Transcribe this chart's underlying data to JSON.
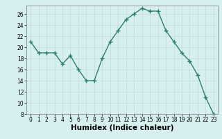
{
  "x": [
    0,
    1,
    2,
    3,
    4,
    5,
    6,
    7,
    8,
    9,
    10,
    11,
    12,
    13,
    14,
    15,
    16,
    17,
    18,
    19,
    20,
    21,
    22,
    23
  ],
  "y": [
    21,
    19,
    19,
    19,
    17,
    18.5,
    16,
    14,
    14,
    18,
    21,
    23,
    25,
    26,
    27,
    26.5,
    26.5,
    23,
    21,
    19,
    17.5,
    15,
    11,
    8
  ],
  "line_color": "#2d7d6e",
  "marker": "+",
  "marker_size": 4,
  "xlabel": "Humidex (Indice chaleur)",
  "ylim": [
    8,
    27
  ],
  "xlim": [
    -0.5,
    23.5
  ],
  "yticks": [
    8,
    10,
    12,
    14,
    16,
    18,
    20,
    22,
    24,
    26
  ],
  "xticks": [
    0,
    1,
    2,
    3,
    4,
    5,
    6,
    7,
    8,
    9,
    10,
    11,
    12,
    13,
    14,
    15,
    16,
    17,
    18,
    19,
    20,
    21,
    22,
    23
  ],
  "bg_color": "#d6f0f0",
  "grid_color": "#c8dede",
  "tick_fontsize": 5.5,
  "xlabel_fontsize": 7.5,
  "xlabel_fontweight": "bold"
}
